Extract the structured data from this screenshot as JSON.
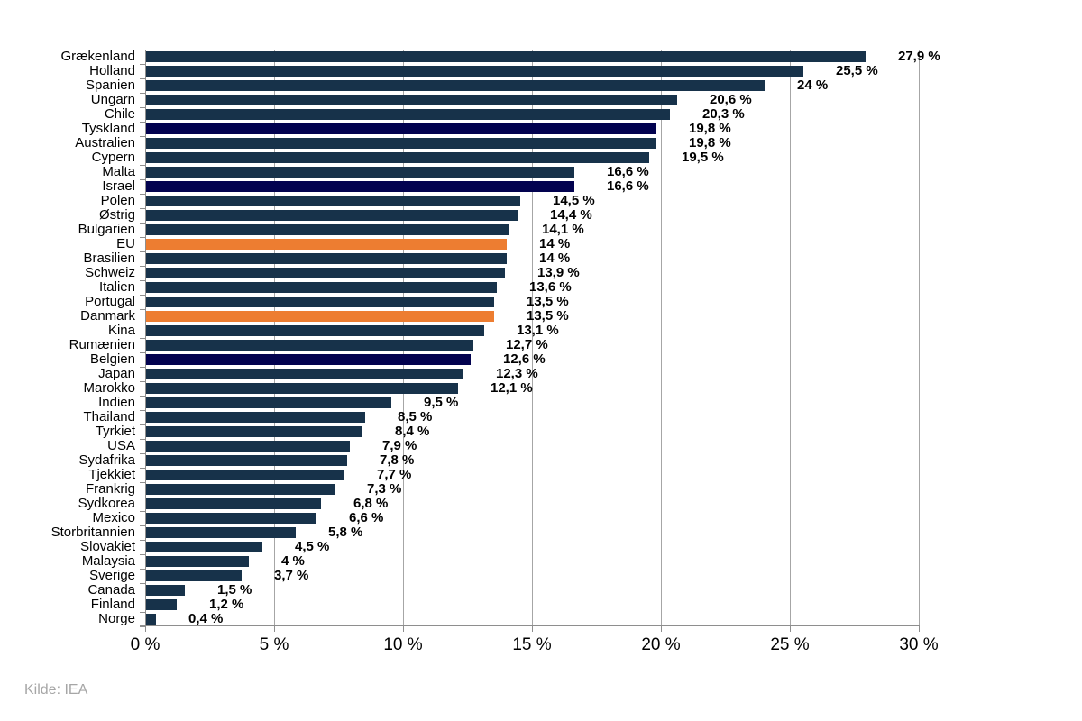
{
  "chart_data": {
    "type": "bar",
    "orientation": "horizontal",
    "title": "",
    "xlabel": "",
    "ylabel": "",
    "x_range": [
      0,
      30
    ],
    "grid": true,
    "legend": "none",
    "x_ticks": [
      "0 %",
      "5 %",
      "10 %",
      "15 %",
      "20 %",
      "25 %",
      "30 %"
    ],
    "categories": [
      "Grækenland",
      "Holland",
      "Spanien",
      "Ungarn",
      "Chile",
      "Tyskland",
      "Australien",
      "Cypern",
      "Malta",
      "Israel",
      "Polen",
      "Østrig",
      "Bulgarien",
      "EU",
      "Brasilien",
      "Schweiz",
      "Italien",
      "Portugal",
      "Danmark",
      "Kina",
      "Rumænien",
      "Belgien",
      "Japan",
      "Marokko",
      "Indien",
      "Thailand",
      "Tyrkiet",
      "USA",
      "Sydafrika",
      "Tjekkiet",
      "Frankrig",
      "Sydkorea",
      "Mexico",
      "Storbritannien",
      "Slovakiet",
      "Malaysia",
      "Sverige",
      "Canada",
      "Finland",
      "Norge"
    ],
    "values": [
      27.9,
      25.5,
      24,
      20.6,
      20.3,
      19.8,
      19.8,
      19.5,
      16.6,
      16.6,
      14.5,
      14.4,
      14.1,
      14,
      14,
      13.9,
      13.6,
      13.5,
      13.5,
      13.1,
      12.7,
      12.6,
      12.3,
      12.1,
      9.5,
      8.5,
      8.4,
      7.9,
      7.8,
      7.7,
      7.3,
      6.8,
      6.6,
      5.8,
      4.5,
      4,
      3.7,
      1.5,
      1.2,
      0.4
    ],
    "value_labels": [
      "27,9 %",
      "25,5 %",
      "24 %",
      "20,6 %",
      "20,3 %",
      "19,8 %",
      "19,8 %",
      "19,5 %",
      "16,6 %",
      "16,6 %",
      "14,5 %",
      "14,4 %",
      "14,1 %",
      "14 %",
      "14 %",
      "13,9 %",
      "13,6 %",
      "13,5 %",
      "13,5 %",
      "13,1 %",
      "12,7 %",
      "12,6 %",
      "12,3 %",
      "12,1 %",
      "9,5 %",
      "8,5 %",
      "8,4 %",
      "7,9 %",
      "7,8 %",
      "7,7 %",
      "7,3 %",
      "6,8 %",
      "6,6 %",
      "5,8 %",
      "4,5 %",
      "4 %",
      "3,7 %",
      "1,5 %",
      "1,2 %",
      "0,4 %"
    ],
    "bar_styles": [
      "default",
      "default",
      "default",
      "default",
      "default",
      "navy",
      "default",
      "default",
      "default",
      "navy",
      "default",
      "default",
      "default",
      "orange",
      "default",
      "default",
      "default",
      "default",
      "orange",
      "default",
      "default",
      "navy",
      "default",
      "default",
      "default",
      "default",
      "default",
      "default",
      "default",
      "default",
      "default",
      "default",
      "default",
      "default",
      "default",
      "default",
      "default",
      "default",
      "default",
      "default"
    ],
    "colors": {
      "default": "#17324A",
      "navy": "#02024F",
      "orange": "#ED7D31",
      "gridline": "#A6A6A6",
      "axis": "#8E8E8E",
      "text": "#000000"
    }
  },
  "source": {
    "label": "Kilde: IEA",
    "color": "#A6A6A6"
  }
}
